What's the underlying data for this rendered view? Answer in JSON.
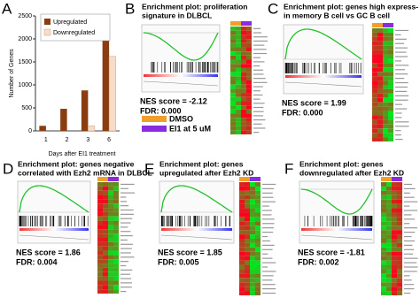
{
  "chart_data": {
    "type": "bar",
    "label": "A",
    "ylabel": "Number of Genes",
    "xlabel": "Days after EI1 treatment",
    "categories": [
      "1",
      "2",
      "3",
      "6"
    ],
    "series": [
      {
        "name": "Upregulated",
        "color": "#8b3d12",
        "values": [
          110,
          480,
          880,
          2150
        ]
      },
      {
        "name": "Downregulated",
        "color": "#f7dcc8",
        "values": [
          0,
          0,
          110,
          1620
        ]
      }
    ],
    "ylim": [
      0,
      2500
    ],
    "yticks": [
      0,
      500,
      1000,
      1500,
      2000,
      2500
    ]
  },
  "panels": [
    {
      "label": "B",
      "title": [
        "Enrichment plot: proliferation",
        "signature in DLBCL"
      ],
      "nes": "NES score = -2.12",
      "fdr": "FDR: 0.000"
    },
    {
      "label": "C",
      "title": [
        "Enrichment plot: genes high express-",
        "in memory B cell vs GC B cell"
      ],
      "nes": "NES score = 1.99",
      "fdr": "FDR: 0.000"
    },
    {
      "label": "D",
      "title": [
        "Enrichment plot: genes negative",
        "correlated with Ezh2 mRNA in DLBCL"
      ],
      "nes": "NES score = 1.86",
      "fdr": "FDR: 0.004"
    },
    {
      "label": "E",
      "title": [
        "Enrichment plot:  genes",
        "upregulated after Ezh2 KD"
      ],
      "nes": "NES score = 1.85",
      "fdr": "FDR: 0.005"
    },
    {
      "label": "F",
      "title": [
        "Enrichment plot: genes",
        "downregulated after Ezh2 KD"
      ],
      "nes": "NES score = -1.81",
      "fdr": "FDR: 0.002"
    }
  ],
  "legend": [
    {
      "name": "DMSO",
      "color": "#f0a028"
    },
    {
      "name": "EI1 at 5 uM",
      "color": "#8a2be2"
    }
  ]
}
